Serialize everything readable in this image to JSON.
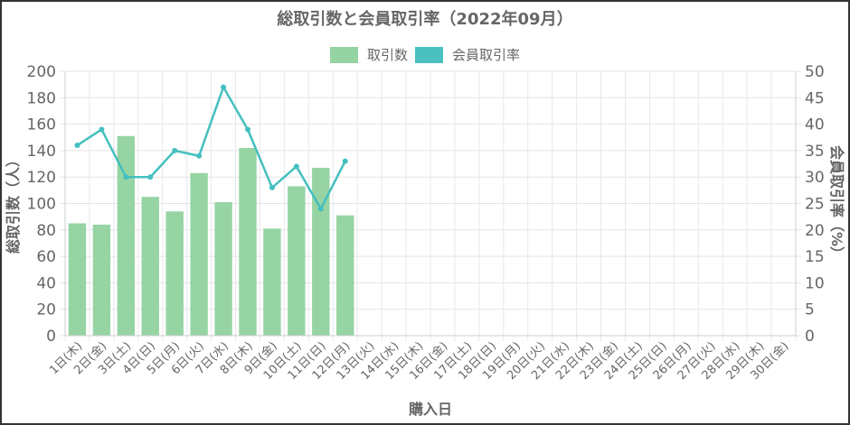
{
  "chart_data": {
    "type": "bar+line",
    "title": "総取引数と会員取引率（2022年09月）",
    "xlabel": "購入日",
    "ylabel_left": "総取引数（人）",
    "ylabel_right": "会員取引率（%）",
    "ylim_left": [
      0,
      200
    ],
    "ylim_right": [
      0,
      50
    ],
    "yticks_left": [
      0,
      20,
      40,
      60,
      80,
      100,
      120,
      140,
      160,
      180,
      200
    ],
    "yticks_right": [
      0,
      5,
      10,
      15,
      20,
      25,
      30,
      35,
      40,
      45,
      50
    ],
    "grid": true,
    "legend_position": "top",
    "categories": [
      "1日(木)",
      "2日(金)",
      "3日(土)",
      "4日(日)",
      "5日(月)",
      "6日(火)",
      "7日(水)",
      "8日(木)",
      "9日(金)",
      "10日(土)",
      "11日(日)",
      "12日(月)",
      "13日(火)",
      "14日(水)",
      "15日(木)",
      "16日(金)",
      "17日(土)",
      "18日(日)",
      "19日(月)",
      "20日(火)",
      "21日(水)",
      "22日(木)",
      "23日(金)",
      "24日(土)",
      "25日(日)",
      "26日(月)",
      "27日(火)",
      "28日(水)",
      "29日(木)",
      "30日(金)"
    ],
    "series": [
      {
        "name": "取引数",
        "type": "bar",
        "axis": "left",
        "color": "#94d3a2",
        "values": [
          85,
          84,
          151,
          105,
          94,
          123,
          101,
          142,
          81,
          113,
          127,
          91,
          null,
          null,
          null,
          null,
          null,
          null,
          null,
          null,
          null,
          null,
          null,
          null,
          null,
          null,
          null,
          null,
          null,
          null
        ]
      },
      {
        "name": "会員取引率",
        "type": "line",
        "axis": "right",
        "color": "#45bfbf",
        "values": [
          36,
          39,
          30,
          30,
          35,
          34,
          47,
          39,
          28,
          32,
          24,
          33,
          null,
          null,
          null,
          null,
          null,
          null,
          null,
          null,
          null,
          null,
          null,
          null,
          null,
          null,
          null,
          null,
          null,
          null
        ]
      }
    ]
  },
  "legend": {
    "items": [
      {
        "label": "取引数",
        "color": "#94d3a2"
      },
      {
        "label": "会員取引率",
        "color": "#4bc0c0"
      }
    ]
  }
}
